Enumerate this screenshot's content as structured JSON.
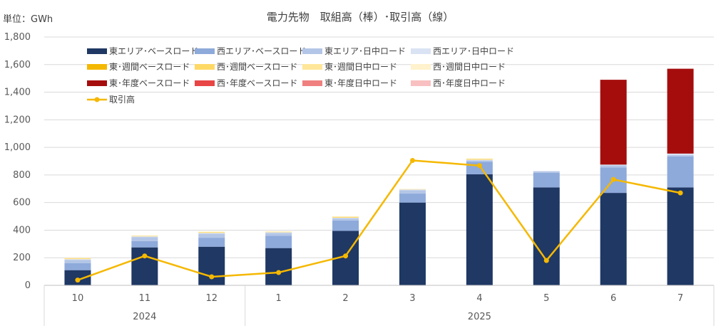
{
  "chart_data": {
    "type": "bar",
    "title": "電力先物　取組高（棒）･取引高（線）",
    "unit_label": "単位：GWh",
    "ylim": [
      0,
      1800
    ],
    "yticks": [
      "0",
      "200",
      "400",
      "600",
      "800",
      "1,000",
      "1,200",
      "1,400",
      "1,600",
      "1,800"
    ],
    "ytick_values": [
      0,
      200,
      400,
      600,
      800,
      1000,
      1200,
      1400,
      1600,
      1800
    ],
    "categories": [
      "10",
      "11",
      "12",
      "1",
      "2",
      "3",
      "4",
      "5",
      "6",
      "7"
    ],
    "year_groups": [
      {
        "label": "2024",
        "start": 0,
        "end": 2
      },
      {
        "label": "2025",
        "start": 3,
        "end": 9
      }
    ],
    "grid": true,
    "legend_position": "top-left",
    "series": [
      {
        "name": "東エリア･ベースロード",
        "color": "#1f3864",
        "kind": "bar",
        "values": [
          110,
          275,
          280,
          270,
          395,
          600,
          805,
          710,
          670,
          710
        ]
      },
      {
        "name": "西エリア･ベースロード",
        "color": "#8eaadb",
        "kind": "bar",
        "values": [
          50,
          45,
          65,
          90,
          75,
          65,
          90,
          105,
          185,
          225
        ]
      },
      {
        "name": "東エリア･日中ロード",
        "color": "#b4c6e7",
        "kind": "bar",
        "values": [
          25,
          30,
          30,
          20,
          15,
          25,
          10,
          10,
          15,
          10
        ]
      },
      {
        "name": "西エリア･日中ロード",
        "color": "#dae3f3",
        "kind": "bar",
        "values": [
          5,
          5,
          5,
          5,
          5,
          5,
          5,
          5,
          5,
          10
        ]
      },
      {
        "name": "東･週間ベースロード",
        "color": "#f4b800",
        "kind": "bar",
        "values": [
          0,
          0,
          0,
          0,
          0,
          0,
          0,
          0,
          0,
          0
        ]
      },
      {
        "name": "西･週間ベースロード",
        "color": "#ffd966",
        "kind": "bar",
        "values": [
          5,
          3,
          5,
          3,
          5,
          2,
          5,
          0,
          0,
          0
        ]
      },
      {
        "name": "東･週間日中ロード",
        "color": "#ffe699",
        "kind": "bar",
        "values": [
          3,
          2,
          3,
          2,
          3,
          1,
          3,
          0,
          0,
          0
        ]
      },
      {
        "name": "西･週間日中ロード",
        "color": "#fff2cc",
        "kind": "bar",
        "values": [
          2,
          2,
          2,
          2,
          2,
          1,
          2,
          0,
          0,
          0
        ]
      },
      {
        "name": "東･年度ベースロード",
        "color": "#a50d0d",
        "kind": "bar",
        "values": [
          0,
          0,
          0,
          0,
          0,
          0,
          0,
          0,
          615,
          615
        ]
      },
      {
        "name": "西･年度ベースロード",
        "color": "#e84545",
        "kind": "bar",
        "values": [
          0,
          0,
          0,
          0,
          0,
          0,
          0,
          0,
          0,
          0
        ]
      },
      {
        "name": "東･年度日中ロード",
        "color": "#f08080",
        "kind": "bar",
        "values": [
          0,
          0,
          0,
          0,
          0,
          0,
          0,
          0,
          0,
          0
        ]
      },
      {
        "name": "西･年度日中ロード",
        "color": "#f8c0c0",
        "kind": "bar",
        "values": [
          0,
          0,
          0,
          0,
          0,
          0,
          0,
          0,
          0,
          0
        ]
      },
      {
        "name": "取引高",
        "color": "#f5b800",
        "kind": "line",
        "values": [
          38,
          213,
          62,
          93,
          213,
          905,
          868,
          180,
          767,
          670
        ]
      }
    ]
  }
}
